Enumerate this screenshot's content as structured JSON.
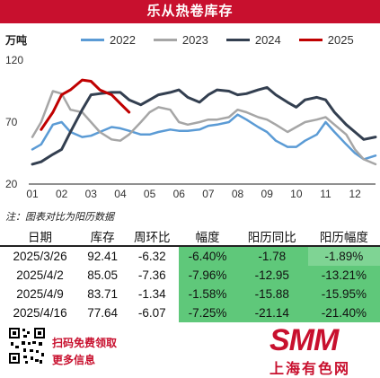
{
  "header": {
    "title": "乐从热卷库存"
  },
  "unit": "万吨",
  "chart_data": {
    "type": "line",
    "ylim": [
      20,
      120
    ],
    "yticks": [
      20,
      70,
      120
    ],
    "categories": [
      "01",
      "02",
      "03",
      "04",
      "05",
      "06",
      "07",
      "08",
      "09",
      "10",
      "11",
      "12"
    ],
    "series": [
      {
        "name": "2022",
        "color": "#5b9bd5",
        "x": [
          1,
          1.3,
          1.7,
          2,
          2.3,
          2.7,
          3,
          3.3,
          3.7,
          4,
          4.3,
          4.7,
          5,
          5.3,
          5.7,
          6,
          6.3,
          6.7,
          7,
          7.3,
          7.7,
          8,
          8.3,
          8.7,
          9,
          9.3,
          9.7,
          10,
          10.3,
          10.7,
          11,
          11.3,
          11.7,
          12,
          12.3,
          12.7
        ],
        "values": [
          48,
          52,
          68,
          70,
          62,
          58,
          59,
          62,
          66,
          65,
          63,
          60,
          60,
          62,
          64,
          63,
          63,
          64,
          67,
          68,
          70,
          76,
          72,
          66,
          62,
          55,
          50,
          50,
          55,
          60,
          70,
          62,
          52,
          45,
          40,
          43
        ]
      },
      {
        "name": "2023",
        "color": "#a6a6a6",
        "x": [
          1,
          1.3,
          1.7,
          2,
          2.3,
          2.7,
          3,
          3.3,
          3.7,
          4,
          4.3,
          4.7,
          5,
          5.3,
          5.7,
          6,
          6.3,
          6.7,
          7,
          7.3,
          7.7,
          8,
          8.3,
          8.7,
          9,
          9.3,
          9.7,
          10,
          10.3,
          10.7,
          11,
          11.3,
          11.7,
          12,
          12.3,
          12.7
        ],
        "values": [
          58,
          70,
          95,
          93,
          80,
          78,
          70,
          62,
          56,
          55,
          60,
          70,
          78,
          82,
          80,
          70,
          68,
          70,
          72,
          72,
          74,
          80,
          78,
          74,
          72,
          68,
          62,
          66,
          70,
          72,
          74,
          68,
          60,
          48,
          40,
          36
        ]
      },
      {
        "name": "2024",
        "color": "#333f50",
        "x": [
          1,
          1.3,
          1.7,
          2,
          2.3,
          2.7,
          3,
          3.3,
          3.7,
          4,
          4.3,
          4.7,
          5,
          5.3,
          5.7,
          6,
          6.3,
          6.7,
          7,
          7.3,
          7.7,
          8,
          8.3,
          8.7,
          9,
          9.3,
          9.7,
          10,
          10.3,
          10.7,
          11,
          11.3,
          11.7,
          12,
          12.3,
          12.7
        ],
        "values": [
          36,
          38,
          44,
          48,
          62,
          80,
          92,
          93,
          94,
          94,
          88,
          84,
          88,
          92,
          94,
          96,
          90,
          86,
          92,
          96,
          95,
          92,
          93,
          96,
          98,
          92,
          86,
          82,
          88,
          90,
          88,
          78,
          68,
          62,
          56,
          58
        ]
      },
      {
        "name": "2025",
        "color": "#c00000",
        "x": [
          1.3,
          1.7,
          2,
          2.3,
          2.7,
          3,
          3.3,
          3.7,
          4,
          4.3
        ],
        "values": [
          64,
          78,
          92,
          96,
          104,
          103,
          96,
          92,
          85,
          78
        ]
      }
    ]
  },
  "note": "注：图表对比为阳历数据",
  "table": {
    "headers": [
      "日期",
      "库存",
      "周环比",
      "幅度",
      "阳历同比",
      "阳历幅度"
    ],
    "rows": [
      [
        "2025/3/26",
        "92.41",
        "-6.32",
        "-6.40%",
        "-1.78",
        "-1.89%"
      ],
      [
        "2025/4/2",
        "85.05",
        "-7.36",
        "-7.96%",
        "-12.95",
        "-13.21%"
      ],
      [
        "2025/4/9",
        "83.71",
        "-1.34",
        "-1.58%",
        "-15.88",
        "-15.95%"
      ],
      [
        "2025/4/16",
        "77.64",
        "-6.07",
        "-7.25%",
        "-21.14",
        "-21.40%"
      ]
    ]
  },
  "footer": {
    "scan_text": "扫码免费领取",
    "more_text": "更多信息",
    "logo_text": "SMM",
    "logo_cn": "上海有色网"
  }
}
